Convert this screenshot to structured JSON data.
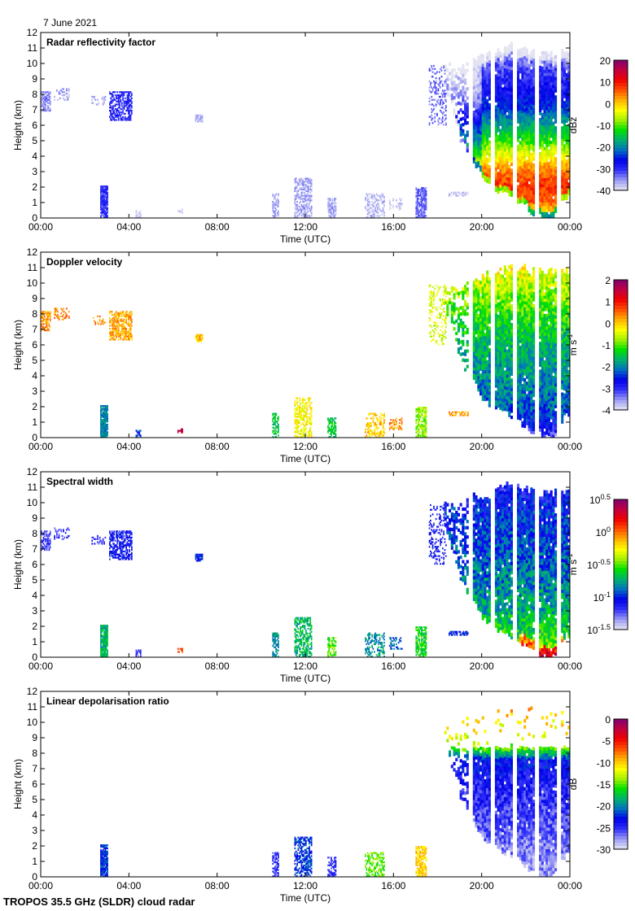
{
  "date_label": "7 June 2021",
  "footer": "TROPOS 35.5 GHz (SLDR) cloud radar",
  "chart_data": {
    "type": "heatmap",
    "xlabel": "Time (UTC)",
    "ylabel": "Height (km)",
    "xlim": [
      0,
      24
    ],
    "ylim": [
      0,
      12
    ],
    "x_ticks": [
      "00:00",
      "04:00",
      "08:00",
      "12:00",
      "16:00",
      "20:00",
      "00:00"
    ],
    "y_ticks": [
      "0",
      "1",
      "2",
      "3",
      "4",
      "5",
      "6",
      "7",
      "8",
      "9",
      "10",
      "11",
      "12"
    ],
    "colormap": [
      "#e4e4f2",
      "#9a9af4",
      "#3030f8",
      "#0000e8",
      "#0070c0",
      "#00b070",
      "#00e000",
      "#a0f000",
      "#ffff00",
      "#ffb000",
      "#ff5000",
      "#f00000",
      "#c00040",
      "#800070"
    ],
    "missing_data_gaps_hours": [
      19.5,
      20.5,
      21.5,
      22.5,
      23.5
    ],
    "main_system_columns": [
      [
        18.3,
        8.5,
        9.8
      ],
      [
        18.6,
        7.2,
        9.6
      ],
      [
        19.0,
        5.0,
        9.8
      ],
      [
        19.3,
        4.2,
        10.0
      ],
      [
        19.7,
        3.3,
        10.3
      ],
      [
        20.0,
        2.6,
        10.4
      ],
      [
        20.4,
        2.0,
        10.5
      ],
      [
        20.8,
        1.7,
        10.7
      ],
      [
        21.2,
        1.5,
        11.0
      ],
      [
        21.6,
        1.1,
        11.0
      ],
      [
        22.0,
        0.7,
        10.8
      ],
      [
        22.4,
        0.1,
        10.6
      ],
      [
        22.8,
        0.0,
        10.5
      ],
      [
        23.2,
        0.0,
        10.6
      ],
      [
        23.5,
        1.0,
        10.7
      ],
      [
        23.8,
        1.4,
        10.6
      ],
      [
        24.0,
        1.6,
        10.5
      ]
    ],
    "panels": [
      {
        "title": "Radar reflectivity factor",
        "quantity": "reflectivity",
        "unit": "dBz",
        "unit_sup": "",
        "range": [
          -40,
          20
        ],
        "log": false,
        "colorbar_ticks": [
          {
            "v": 20,
            "label": "20"
          },
          {
            "v": 10,
            "label": "10"
          },
          {
            "v": 0,
            "label": "0"
          },
          {
            "v": -10,
            "label": "-10"
          },
          {
            "v": -20,
            "label": "-20"
          },
          {
            "v": -30,
            "label": "-30"
          },
          {
            "v": -40,
            "label": "-40"
          }
        ],
        "profile": [
          [
            0,
            -4
          ],
          [
            1,
            6
          ],
          [
            2,
            8
          ],
          [
            3,
            4
          ],
          [
            4,
            -4
          ],
          [
            5,
            -12
          ],
          [
            6,
            -18
          ],
          [
            7,
            -24
          ],
          [
            8,
            -28
          ],
          [
            9,
            -30
          ],
          [
            10,
            -33
          ],
          [
            11,
            -38
          ]
        ],
        "noise": 6
      },
      {
        "title": "Doppler velocity",
        "quantity": "velocity",
        "unit": "m s",
        "unit_sup": "-1",
        "range": [
          -4,
          2
        ],
        "log": false,
        "colorbar_ticks": [
          {
            "v": 2,
            "label": "2"
          },
          {
            "v": 1,
            "label": "1"
          },
          {
            "v": 0,
            "label": "0"
          },
          {
            "v": -1,
            "label": "-1"
          },
          {
            "v": -2,
            "label": "-2"
          },
          {
            "v": -3,
            "label": "-3"
          },
          {
            "v": -4,
            "label": "-4"
          }
        ],
        "profile": [
          [
            0,
            -3.2
          ],
          [
            1,
            -2.6
          ],
          [
            2,
            -2.2
          ],
          [
            4,
            -1.9
          ],
          [
            6,
            -1.6
          ],
          [
            8,
            -1.1
          ],
          [
            10,
            -0.6
          ],
          [
            11,
            -0.3
          ]
        ],
        "noise": 0.9
      },
      {
        "title": "Spectral width",
        "quantity": "width",
        "unit": "m s",
        "unit_sup": "-1",
        "range": [
          -1.5,
          0.5
        ],
        "log": true,
        "colorbar_ticks": [
          {
            "v": 0.5,
            "label": "10",
            "sup": "0.5"
          },
          {
            "v": 0,
            "label": "10",
            "sup": "0"
          },
          {
            "v": -0.5,
            "label": "10",
            "sup": "-0.5"
          },
          {
            "v": -1,
            "label": "10",
            "sup": "-1"
          },
          {
            "v": -1.5,
            "label": "10",
            "sup": "-1.5"
          }
        ],
        "profile": [
          [
            0,
            -0.2
          ],
          [
            1,
            -0.55
          ],
          [
            3,
            -0.75
          ],
          [
            5,
            -0.85
          ],
          [
            7,
            -0.95
          ],
          [
            9,
            -1.0
          ],
          [
            11,
            -1.1
          ]
        ],
        "noise": 0.35
      },
      {
        "title": "Linear depolarisation ratio",
        "quantity": "ldr",
        "unit": "dB",
        "unit_sup": "",
        "range": [
          -30,
          0
        ],
        "log": false,
        "colorbar_ticks": [
          {
            "v": 0,
            "label": "0"
          },
          {
            "v": -5,
            "label": "-5"
          },
          {
            "v": -10,
            "label": "-10"
          },
          {
            "v": -15,
            "label": "-15"
          },
          {
            "v": -20,
            "label": "-20"
          },
          {
            "v": -25,
            "label": "-25"
          },
          {
            "v": -30,
            "label": "-30"
          }
        ],
        "profile": [
          [
            0,
            -28
          ],
          [
            2,
            -27
          ],
          [
            4,
            -25.5
          ],
          [
            6,
            -24.5
          ],
          [
            7.5,
            -23
          ],
          [
            8.2,
            -15
          ],
          [
            9,
            -12
          ],
          [
            11,
            -9
          ]
        ],
        "noise": 4,
        "dense_top_km": 8.3
      }
    ],
    "patches": [
      {
        "t": [
          0.0,
          0.4
        ],
        "h": [
          6.9,
          8.1
        ],
        "v": [
          -34,
          0.3,
          -1.2,
          null
        ],
        "density": 0.6
      },
      {
        "t": [
          0.6,
          1.3
        ],
        "h": [
          7.6,
          8.3
        ],
        "v": [
          -36,
          0.4,
          -1.2,
          null
        ],
        "density": 0.3
      },
      {
        "t": [
          2.3,
          2.9
        ],
        "h": [
          7.3,
          7.8
        ],
        "v": [
          -36,
          0.3,
          -1.2,
          null
        ],
        "density": 0.3
      },
      {
        "t": [
          3.1,
          4.1
        ],
        "h": [
          6.3,
          8.1
        ],
        "v": [
          -30,
          0.2,
          -1.1,
          null
        ],
        "density": 0.6
      },
      {
        "t": [
          7.0,
          7.3
        ],
        "h": [
          6.2,
          6.6
        ],
        "v": [
          -37,
          0.0,
          -1.0,
          null
        ],
        "density": 0.8
      },
      {
        "t": [
          2.7,
          3.0
        ],
        "h": [
          0.0,
          2.1
        ],
        "v": [
          -30,
          -2.0,
          -0.7,
          -22
        ],
        "density": 0.9
      },
      {
        "t": [
          4.3,
          4.5
        ],
        "h": [
          0.0,
          0.5
        ],
        "v": [
          -38,
          -2.5,
          -1.2,
          null
        ],
        "density": 0.6
      },
      {
        "t": [
          6.2,
          6.4
        ],
        "h": [
          0.3,
          0.6
        ],
        "v": [
          -39,
          1.5,
          0.0,
          null
        ],
        "density": 0.6
      },
      {
        "t": [
          10.5,
          10.8
        ],
        "h": [
          0.0,
          1.6
        ],
        "v": [
          -36,
          -1.5,
          -0.8,
          -25
        ],
        "density": 0.6
      },
      {
        "t": [
          11.5,
          12.3
        ],
        "h": [
          0.0,
          2.6
        ],
        "v": [
          -36,
          -0.3,
          -0.7,
          -22
        ],
        "density": 0.55
      },
      {
        "t": [
          13.0,
          13.4
        ],
        "h": [
          0.0,
          1.3
        ],
        "v": [
          -36,
          -1.5,
          -0.5,
          -25
        ],
        "density": 0.6
      },
      {
        "t": [
          14.7,
          15.6
        ],
        "h": [
          0.0,
          1.6
        ],
        "v": [
          -37,
          0.0,
          -0.8,
          -15
        ],
        "density": 0.45
      },
      {
        "t": [
          15.8,
          16.4
        ],
        "h": [
          0.5,
          1.3
        ],
        "v": [
          -38,
          0.3,
          -0.9,
          null
        ],
        "density": 0.4
      },
      {
        "t": [
          17.0,
          17.5
        ],
        "h": [
          0.0,
          2.0
        ],
        "v": [
          -33,
          -0.8,
          -0.6,
          -10
        ],
        "density": 0.7
      },
      {
        "t": [
          18.5,
          19.4
        ],
        "h": [
          1.4,
          1.7
        ],
        "v": [
          -38,
          0.3,
          -1.0,
          null
        ],
        "density": 0.6
      },
      {
        "t": [
          17.6,
          18.4
        ],
        "h": [
          6.0,
          9.8
        ],
        "v": [
          -33,
          -0.5,
          -1.1,
          null
        ],
        "density": 0.25
      }
    ]
  }
}
